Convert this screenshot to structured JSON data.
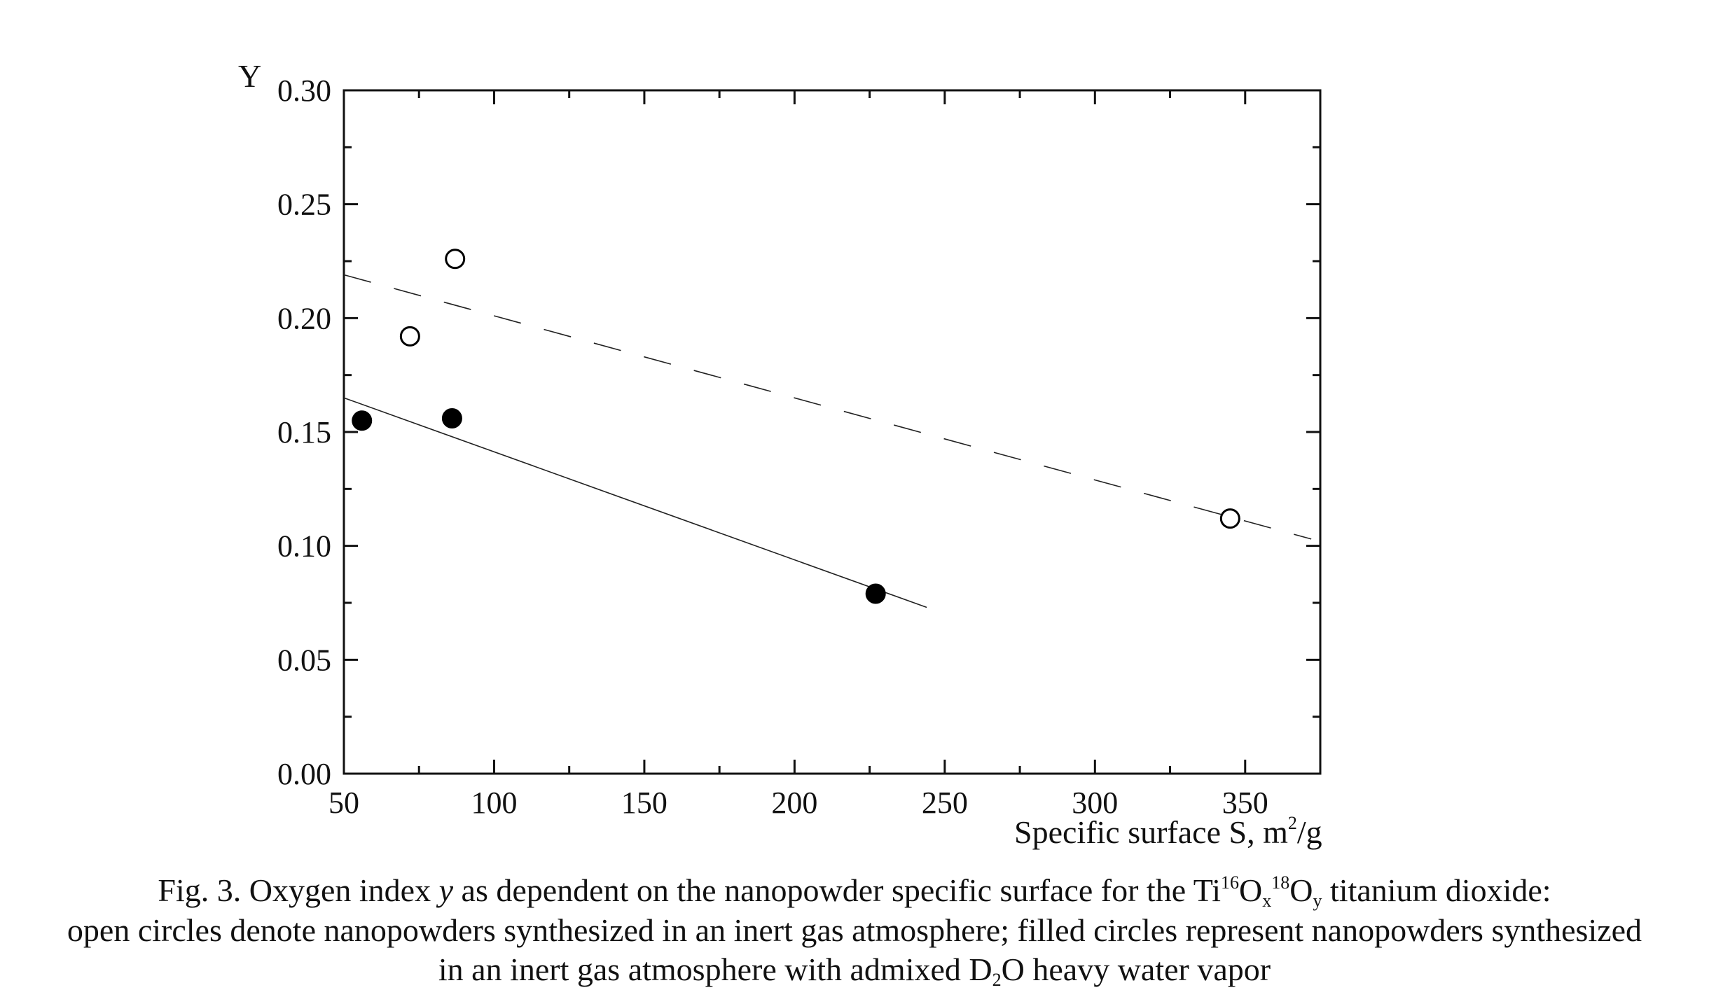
{
  "chart_data": {
    "type": "scatter",
    "ylabel": "Y",
    "xlabel_main": "Specific surface S, m",
    "xlabel_sup": "2",
    "xlabel_tail": "/g",
    "xlim": [
      50,
      375
    ],
    "ylim": [
      0.0,
      0.3
    ],
    "x_ticks": [
      "50",
      "100",
      "150",
      "200",
      "250",
      "300",
      "350"
    ],
    "y_ticks": [
      "0.00",
      "0.05",
      "0.10",
      "0.15",
      "0.20",
      "0.25",
      "0.30"
    ],
    "series": [
      {
        "marker": "open-circle",
        "points": [
          [
            72,
            0.192
          ],
          [
            87,
            0.226
          ],
          [
            345,
            0.112
          ]
        ],
        "fit": {
          "style": "dashed",
          "x": [
            50,
            372
          ],
          "y": [
            0.219,
            0.103
          ]
        }
      },
      {
        "marker": "filled-circle",
        "points": [
          [
            56,
            0.155
          ],
          [
            86,
            0.156
          ],
          [
            227,
            0.079
          ]
        ],
        "fit": {
          "style": "solid",
          "x": [
            50,
            244
          ],
          "y": [
            0.165,
            0.073
          ]
        }
      }
    ],
    "grid": false
  },
  "caption": {
    "line1_a": "Fig. 3. Oxygen index ",
    "line1_var": "y",
    "line1_b": " as dependent on the nanopowder specific surface for the Ti",
    "line1_sup1": "16",
    "line1_o1": "O",
    "line1_sub1": "x",
    "line1_sup2": "18",
    "line1_o2": "O",
    "line1_sub2": "y",
    "line1_c": " titanium dioxide:",
    "line2": "open circles denote nanopowders synthesized in an inert gas atmosphere; filled circles represent nanopowders synthesized",
    "line3_a": "in an inert gas atmosphere with admixed D",
    "line3_sub": "2",
    "line3_b": "O heavy water vapor"
  }
}
